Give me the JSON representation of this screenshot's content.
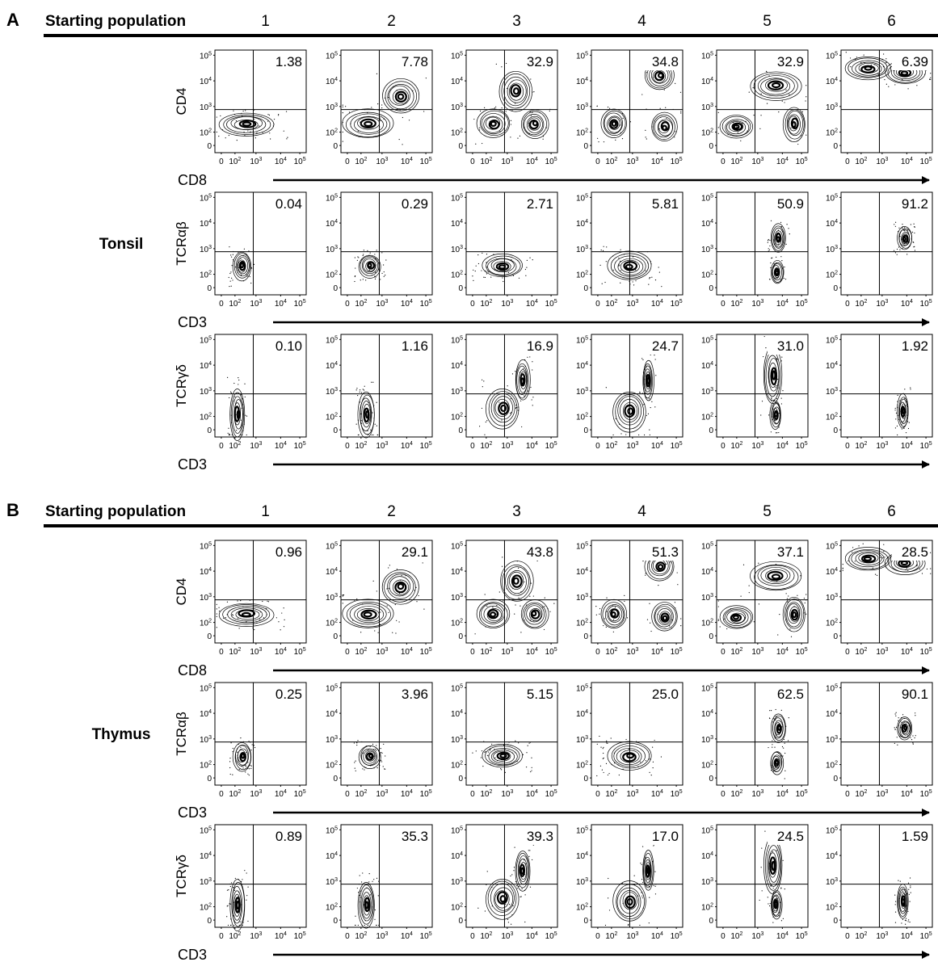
{
  "sections": [
    {
      "letter": "A",
      "header": "Starting population",
      "columns": [
        "1",
        "2",
        "3",
        "4",
        "5",
        "6"
      ],
      "tissue": "Tonsil",
      "rows": [
        {
          "ylabel": "CD4",
          "xlabel": "CD8",
          "values": [
            "1.38",
            "7.78",
            "32.9",
            "34.8",
            "32.9",
            "6.39"
          ]
        },
        {
          "ylabel": "TCRαβ",
          "xlabel": "CD3",
          "values": [
            "0.04",
            "0.29",
            "2.71",
            "5.81",
            "50.9",
            "91.2"
          ]
        },
        {
          "ylabel": "TCRγδ",
          "xlabel": "CD3",
          "values": [
            "0.10",
            "1.16",
            "16.9",
            "24.7",
            "31.0",
            "1.92"
          ]
        }
      ]
    },
    {
      "letter": "B",
      "header": "Starting population",
      "columns": [
        "1",
        "2",
        "3",
        "4",
        "5",
        "6"
      ],
      "tissue": "Thymus",
      "rows": [
        {
          "ylabel": "CD4",
          "xlabel": "CD8",
          "values": [
            "0.96",
            "29.1",
            "43.8",
            "51.3",
            "37.1",
            "28.5"
          ]
        },
        {
          "ylabel": "TCRαβ",
          "xlabel": "CD3",
          "values": [
            "0.25",
            "3.96",
            "5.15",
            "25.0",
            "62.5",
            "90.1"
          ]
        },
        {
          "ylabel": "TCRγδ",
          "xlabel": "CD3",
          "values": [
            "0.89",
            "35.3",
            "39.3",
            "17.0",
            "24.5",
            "1.59"
          ]
        }
      ]
    }
  ],
  "axis_ticks": {
    "y": [
      "10^5",
      "10^4",
      "10^3",
      "10^2",
      "0"
    ],
    "x": [
      "0",
      "10^2",
      "10^3",
      "10^4",
      "10^5"
    ]
  },
  "chart_data": {
    "type": "table",
    "description_source": "quadrant percentages printed on each flow cytometry plot",
    "columns": [
      "1",
      "2",
      "3",
      "4",
      "5",
      "6"
    ],
    "tables": [
      {
        "section": "A",
        "tissue": "Tonsil",
        "rows": [
          {
            "ylabel": "CD4",
            "xlabel": "CD8",
            "values": [
              1.38,
              7.78,
              32.9,
              34.8,
              32.9,
              6.39
            ]
          },
          {
            "ylabel": "TCRαβ",
            "xlabel": "CD3",
            "values": [
              0.04,
              0.29,
              2.71,
              5.81,
              50.9,
              91.2
            ]
          },
          {
            "ylabel": "TCRγδ",
            "xlabel": "CD3",
            "values": [
              0.1,
              1.16,
              16.9,
              24.7,
              31.0,
              1.92
            ]
          }
        ]
      },
      {
        "section": "B",
        "tissue": "Thymus",
        "rows": [
          {
            "ylabel": "CD4",
            "xlabel": "CD8",
            "values": [
              0.96,
              29.1,
              43.8,
              51.3,
              37.1,
              28.5
            ]
          },
          {
            "ylabel": "TCRαβ",
            "xlabel": "CD3",
            "values": [
              0.25,
              3.96,
              5.15,
              25.0,
              62.5,
              90.1
            ]
          },
          {
            "ylabel": "TCRγδ",
            "xlabel": "CD3",
            "values": [
              0.89,
              35.3,
              39.3,
              17.0,
              24.5,
              1.59
            ]
          }
        ]
      }
    ]
  }
}
